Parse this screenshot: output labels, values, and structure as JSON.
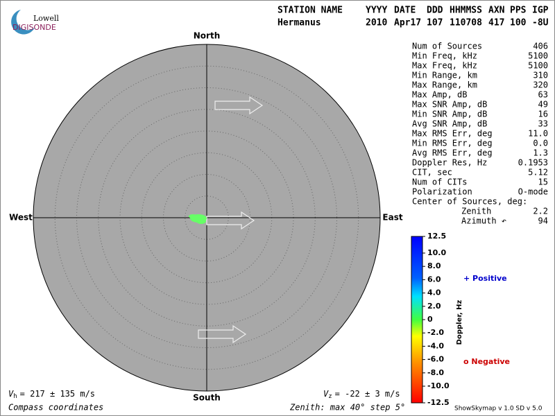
{
  "logo": {
    "top": "Lowell",
    "bottom": "DIGISONDE"
  },
  "header": {
    "columns": [
      "STATION NAME",
      "YYYY",
      "DATE",
      "DDD",
      "HHMMSS",
      "AXN",
      "PPS",
      "IGP"
    ],
    "values": [
      "Hermanus",
      "2010",
      "Apr17",
      "107",
      "110708",
      "417",
      "100",
      "-8U"
    ]
  },
  "compass": {
    "north": "North",
    "south": "South",
    "west": "West",
    "east": "East"
  },
  "stats": {
    "rows": [
      [
        "Num of Sources",
        "406"
      ],
      [
        "Min Freq, kHz",
        "5100"
      ],
      [
        "Max Freq, kHz",
        "5100"
      ],
      [
        "Min Range, km",
        "310"
      ],
      [
        "Max Range, km",
        "320"
      ],
      [
        "Max Amp, dB",
        "63"
      ],
      [
        "Max SNR Amp, dB",
        "49"
      ],
      [
        "Min SNR Amp, dB",
        "16"
      ],
      [
        "Avg SNR Amp, dB",
        "33"
      ],
      [
        "Max RMS Err, deg",
        "11.0"
      ],
      [
        "Min RMS Err, deg",
        "0.0"
      ],
      [
        "Avg RMS Err, deg",
        "1.3"
      ],
      [
        "Doppler Res, Hz",
        "0.1953"
      ],
      [
        "CIT, sec",
        "5.12"
      ],
      [
        "Num of CITs",
        "15"
      ],
      [
        "Polarization",
        "O-mode"
      ]
    ],
    "center_title": "Center of Sources, deg:",
    "center_rows": [
      [
        "Zenith",
        "2.2"
      ],
      [
        "Azimuth ↶",
        "94"
      ]
    ]
  },
  "colorbar": {
    "ticks": [
      "12.5",
      "10.0",
      "8.0",
      "6.0",
      "4.0",
      "2.0",
      "0",
      "-2.0",
      "-4.0",
      "-6.0",
      "-8.0",
      "-10.0",
      "-12.5"
    ],
    "label": "Doppler, Hz",
    "positive": "+ Positive",
    "negative": "o Negative"
  },
  "footer": {
    "vh": {
      "symbol": "V",
      "sub": "h",
      "text": "= 217 ± 135 m/s"
    },
    "vz": {
      "symbol": "V",
      "sub": "z",
      "text": "= -22 ± 3 m/s"
    },
    "coordinates": "Compass coordinates",
    "zenith": "Zenith: max 40°  step 5°",
    "version": "ShowSkymap v 1.0  SD v 5.0"
  }
}
